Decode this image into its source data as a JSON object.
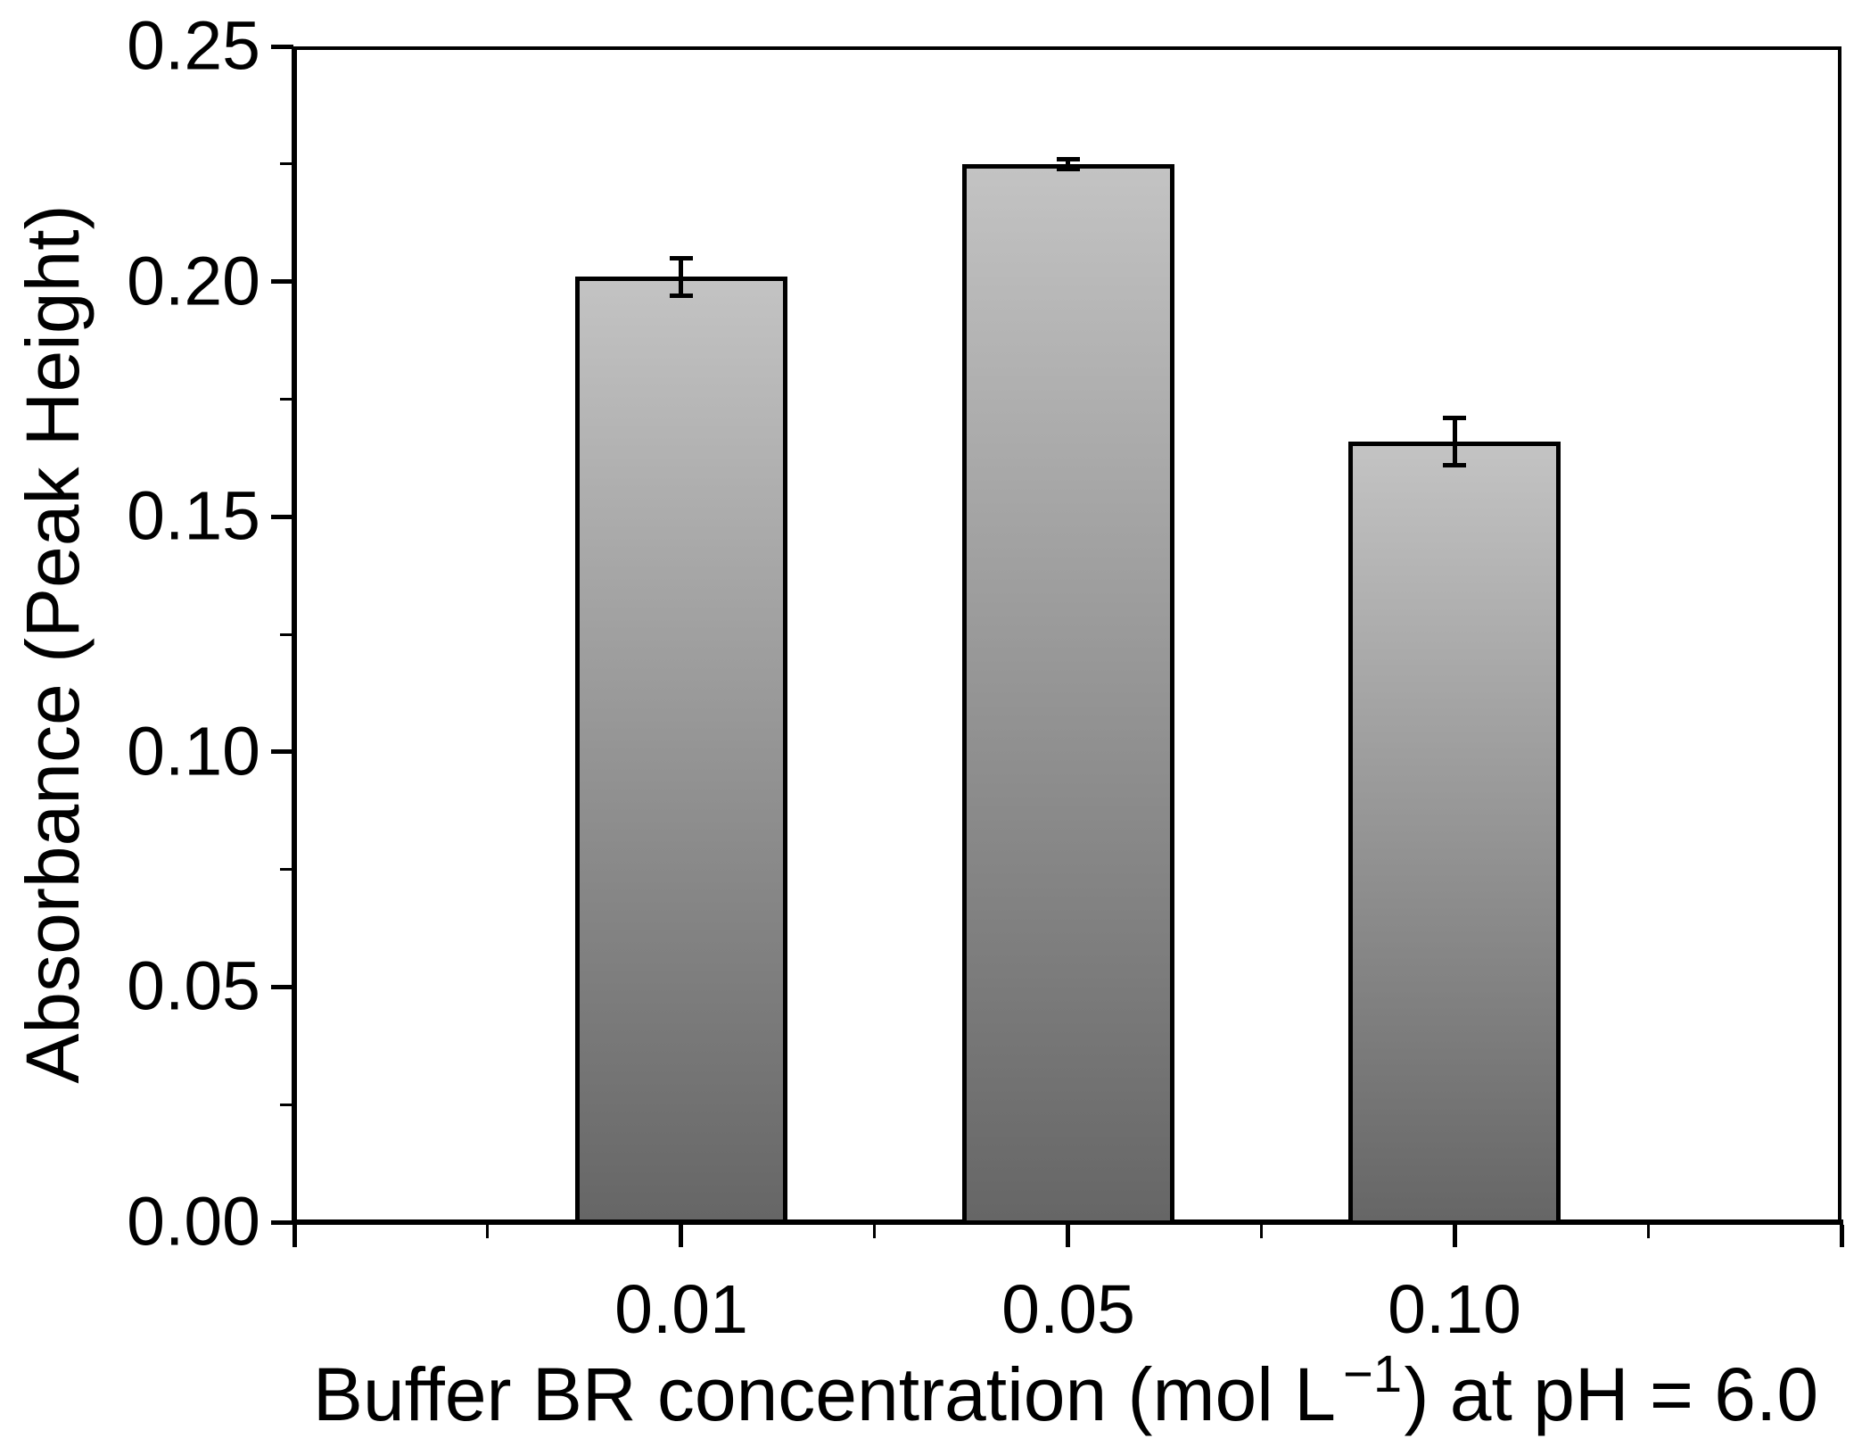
{
  "figure": {
    "background": "#ffffff",
    "text_color": "#000000",
    "frame_color": "#000000"
  },
  "chart_data": {
    "type": "bar",
    "title": "",
    "xlabel": "Buffer BR concentration (mol L−1) at pH = 6.0",
    "xlabel_parts": {
      "pre": "Buffer BR concentration (mol L",
      "sup": "−1",
      "post": ") at pH = 6.0"
    },
    "ylabel": "Absorbance (Peak Height)",
    "categories": [
      "0.01",
      "0.05",
      "0.10"
    ],
    "series": [
      {
        "name": "Absorbance (Peak Height)",
        "values": [
          0.201,
          0.225,
          0.166
        ],
        "errors": [
          0.004,
          0.001,
          0.005
        ]
      }
    ],
    "ylim": [
      0.0,
      0.25
    ],
    "ytick_major_step": 0.05,
    "ytick_minor_step": 0.025,
    "ytick_labels": [
      "0.00",
      "0.05",
      "0.10",
      "0.15",
      "0.20",
      "0.25"
    ],
    "grid": false,
    "legend": "none",
    "bar_gradient_top": "#c3c3c3",
    "bar_gradient_bottom": "#666666",
    "bar_border_color": "#000000",
    "error_bar_color": "#000000"
  }
}
